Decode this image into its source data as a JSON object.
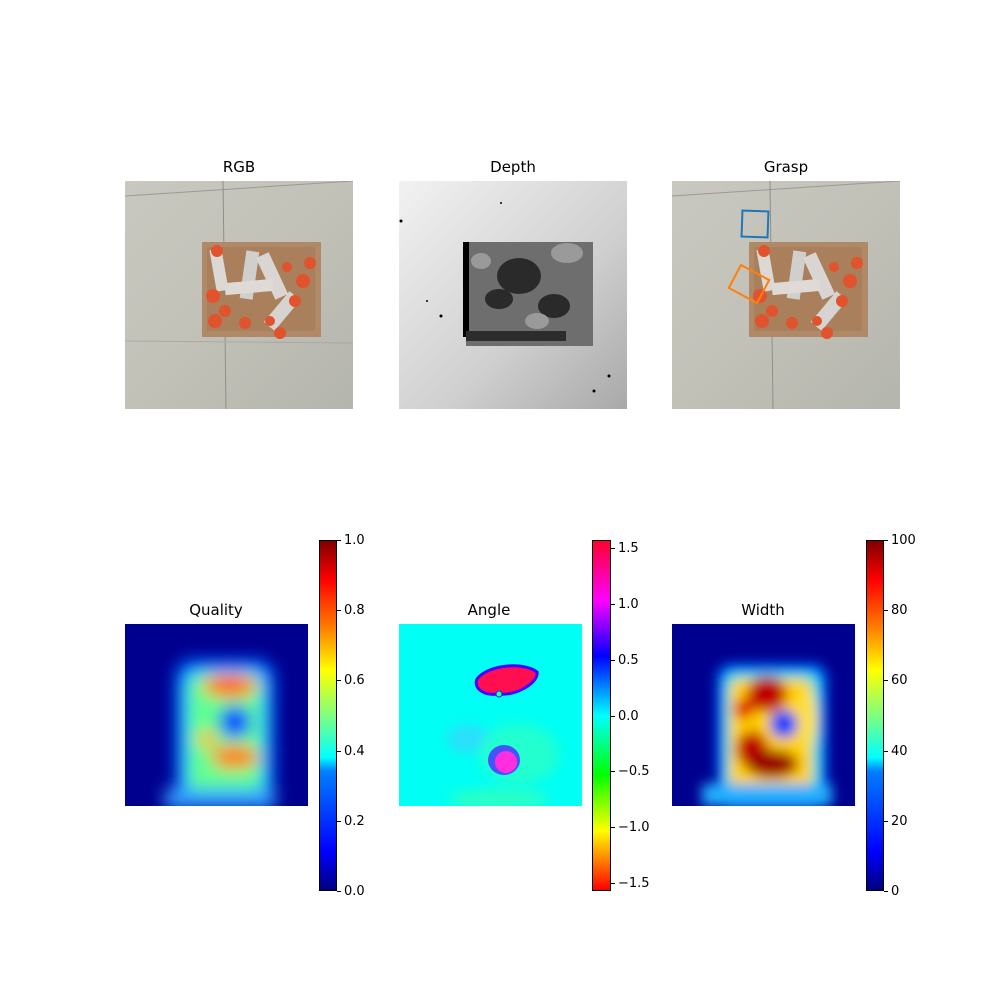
{
  "panels": {
    "rgb": {
      "title": "RGB"
    },
    "depth": {
      "title": "Depth"
    },
    "grasp": {
      "title": "Grasp"
    },
    "quality": {
      "title": "Quality"
    },
    "angle": {
      "title": "Angle"
    },
    "width": {
      "title": "Width"
    }
  },
  "chart_data": [
    {
      "type": "heatmap",
      "name": "Quality",
      "colormap": "jet",
      "clim": [
        0.0,
        1.0
      ],
      "colorbar_ticks": [
        "0.0",
        "0.2",
        "0.4",
        "0.6",
        "0.8",
        "1.0"
      ]
    },
    {
      "type": "heatmap",
      "name": "Angle",
      "colormap": "hsv",
      "clim": [
        -1.571,
        1.571
      ],
      "colorbar_ticks": [
        "−1.5",
        "−1.0",
        "−0.5",
        "0.0",
        "0.5",
        "1.0",
        "1.5"
      ]
    },
    {
      "type": "heatmap",
      "name": "Width",
      "colormap": "jet",
      "clim": [
        0,
        100
      ],
      "colorbar_ticks": [
        "0",
        "20",
        "40",
        "60",
        "80",
        "100"
      ]
    }
  ],
  "grasp_boxes": [
    {
      "color": "#1f77b4"
    },
    {
      "color": "#ff7f0e"
    }
  ]
}
